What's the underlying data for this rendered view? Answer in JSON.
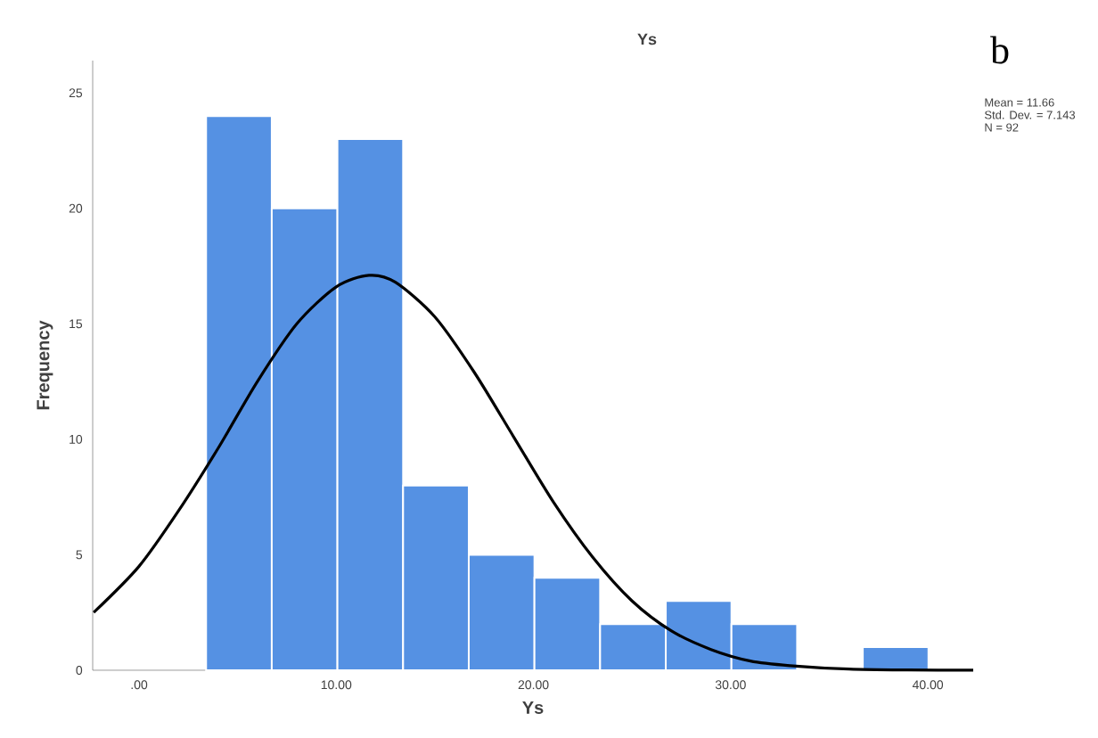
{
  "chart_data": {
    "type": "histogram",
    "title": "Ys",
    "xlabel": "Ys",
    "ylabel": "Frequency",
    "bins": [
      3.4,
      6.73,
      10.06,
      13.39,
      16.72,
      20.05,
      23.38,
      26.71,
      30.04,
      33.37,
      36.7,
      40.03
    ],
    "series": [
      {
        "color": "#5591e3",
        "values": [
          24,
          20,
          23,
          8,
          5,
          4,
          2,
          3,
          2,
          0,
          1
        ]
      },
      {
        "type": "line",
        "color": "#000000",
        "x": [
          -2.3,
          0,
          2,
          4,
          6,
          8,
          10,
          11.66,
          13,
          15,
          17,
          19,
          21,
          23,
          25,
          27,
          29,
          31,
          33,
          36,
          39,
          42.3
        ],
        "values": [
          2.5,
          4.5,
          6.9,
          9.6,
          12.5,
          15.0,
          16.6,
          17.1,
          16.8,
          15.3,
          12.9,
          10.1,
          7.3,
          4.9,
          3.0,
          1.7,
          0.9,
          0.4,
          0.2,
          0.05,
          0.01,
          0
        ]
      }
    ],
    "xlim": [
      -2.35,
      42.3
    ],
    "ylim": [
      0,
      26.4
    ],
    "xticks": [
      {
        "value": 0,
        "label": ".00"
      },
      {
        "value": 10,
        "label": "10.00"
      },
      {
        "value": 20,
        "label": "20.00"
      },
      {
        "value": 30,
        "label": "30.00"
      },
      {
        "value": 40,
        "label": "40.00"
      }
    ],
    "yticks": [
      0,
      5,
      10,
      15,
      20,
      25
    ],
    "annotations": [
      "b",
      "Mean = 11.66",
      "Std. Dev. = 7.143",
      "N = 92"
    ]
  }
}
